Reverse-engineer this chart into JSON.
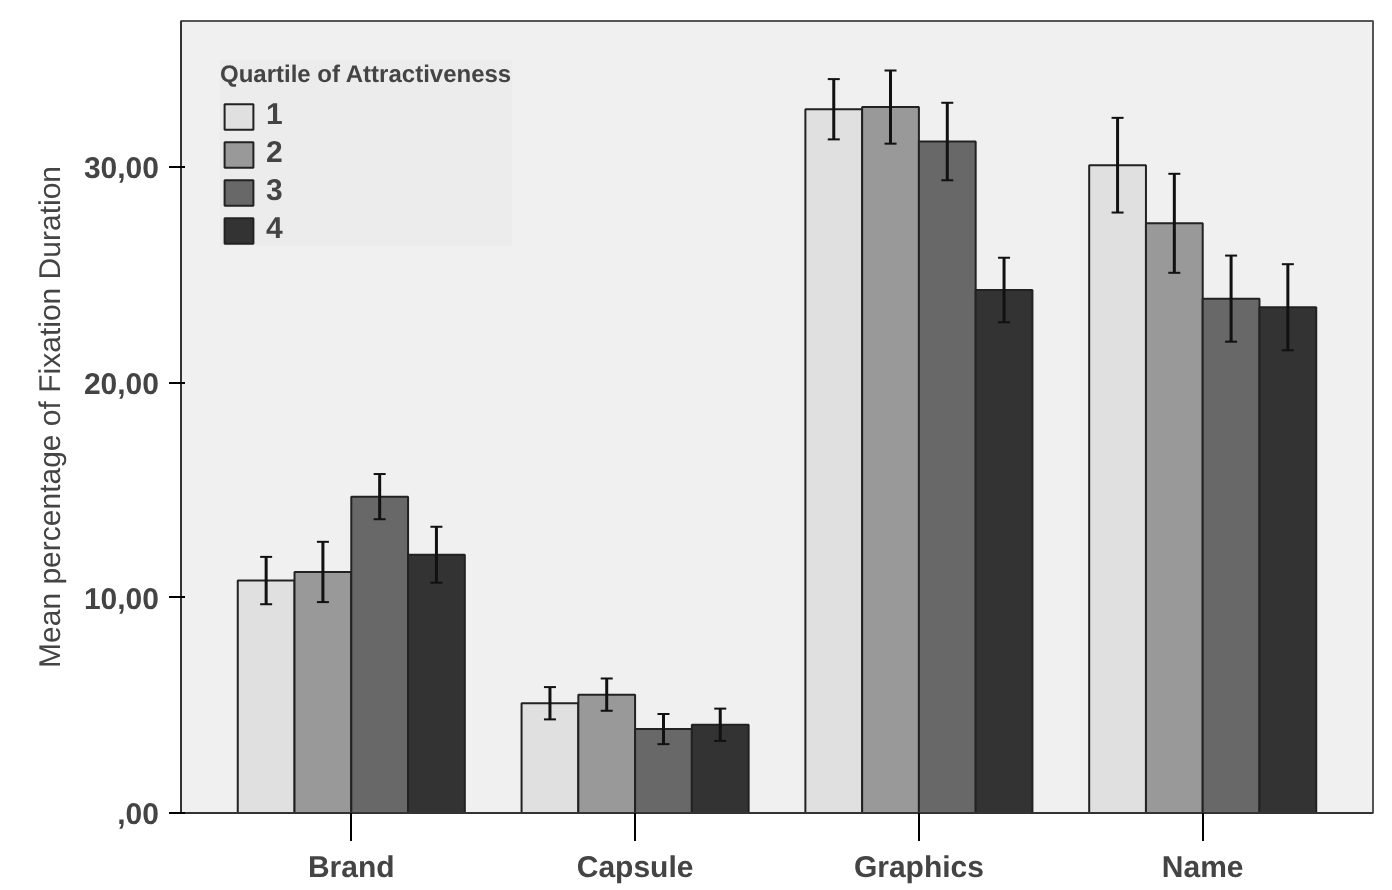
{
  "chart_data": {
    "type": "bar",
    "ylabel": "Mean percentage of Fixation Duration",
    "legend_title": "Quartile of Attractiveness",
    "categories": [
      "Brand",
      "Capsule",
      "Graphics",
      "Name"
    ],
    "series": [
      {
        "name": "1",
        "color": "#e0e0e0",
        "values": [
          10.8,
          5.1,
          32.7,
          30.1
        ],
        "errors": [
          1.1,
          0.75,
          1.4,
          2.2
        ]
      },
      {
        "name": "2",
        "color": "#999999",
        "values": [
          11.2,
          5.5,
          32.8,
          27.4
        ],
        "errors": [
          1.4,
          0.75,
          1.7,
          2.3
        ]
      },
      {
        "name": "3",
        "color": "#686868",
        "values": [
          14.7,
          3.9,
          31.2,
          23.9
        ],
        "errors": [
          1.05,
          0.7,
          1.8,
          2.0
        ]
      },
      {
        "name": "4",
        "color": "#333333",
        "values": [
          12.0,
          4.1,
          24.3,
          23.5
        ],
        "errors": [
          1.3,
          0.75,
          1.5,
          2.0
        ]
      }
    ],
    "ylim": [
      0,
      36.8
    ],
    "yticks": [
      {
        "value": 0,
        "label": ",00"
      },
      {
        "value": 10,
        "label": "10,00"
      },
      {
        "value": 20,
        "label": "20,00"
      },
      {
        "value": 30,
        "label": "30,00"
      }
    ],
    "grid": false,
    "legend": "top left"
  }
}
